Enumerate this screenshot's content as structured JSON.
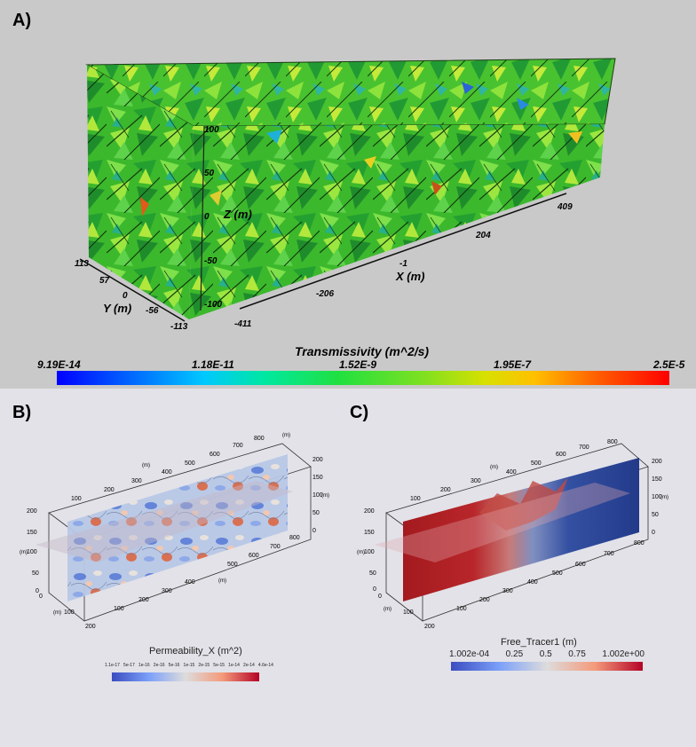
{
  "panels": {
    "a": {
      "label": "A)",
      "colorbar": {
        "title": "Transmissivity (m^2/s)",
        "ticks": [
          "9.19E-14",
          "1.18E-11",
          "1.52E-9",
          "1.95E-7",
          "2.5E-5"
        ]
      },
      "axes": {
        "z_label": "Z (m)",
        "z_ticks": [
          "100",
          "50",
          "0",
          "-50",
          "-100"
        ],
        "x_label": "X (m)",
        "x_ticks": [
          "-411",
          "-206",
          "-1",
          "204",
          "409"
        ],
        "y_label": "Y (m)",
        "y_ticks": [
          "113",
          "57",
          "0",
          "-56",
          "-113"
        ]
      }
    },
    "b": {
      "label": "B)",
      "colorbar": {
        "title": "Permeability_X (m^2)",
        "ticks": [
          "1.1e-17",
          "5e-17",
          "1e-16",
          "2e-16",
          "5e-16",
          "1e-15",
          "2e-15",
          "5e-15",
          "1e-14",
          "2e-14",
          "4.6e-14"
        ]
      },
      "axes": {
        "top_ticks": [
          "100",
          "200",
          "300",
          "400",
          "500",
          "600",
          "700",
          "800"
        ],
        "bottom_ticks": [
          "100",
          "200",
          "300",
          "400",
          "500",
          "600",
          "700",
          "800"
        ],
        "left_ticks": [
          "200",
          "150",
          "100",
          "50",
          "0"
        ],
        "right_ticks": [
          "200",
          "150",
          "100",
          "50",
          "0"
        ],
        "depth_ticks": [
          "200",
          "100",
          "0"
        ],
        "unit": "(m)"
      }
    },
    "c": {
      "label": "C)",
      "colorbar": {
        "title": "Free_Tracer1 (m)",
        "ticks": [
          "1.002e-04",
          "0.25",
          "0.5",
          "0.75",
          "1.002e+00"
        ]
      },
      "axes": {
        "top_ticks": [
          "100",
          "200",
          "300",
          "400",
          "500",
          "600",
          "700",
          "800"
        ],
        "bottom_ticks": [
          "100",
          "200",
          "300",
          "400",
          "500",
          "600",
          "700",
          "800"
        ],
        "left_ticks": [
          "200",
          "150",
          "100",
          "50",
          "0"
        ],
        "right_ticks": [
          "200",
          "150",
          "100",
          "50",
          "0"
        ],
        "depth_ticks": [
          "200",
          "100",
          "0"
        ],
        "unit": "(m)"
      }
    }
  },
  "colors": {
    "panel_a_bg": "#c9c9c9",
    "panel_bc_bg": "#e2e2e8",
    "fracture_green": "#3fbf2a",
    "jet_low": "#0000ff",
    "jet_high": "#ff0000",
    "coolwarm_low": "#3b4cc0",
    "coolwarm_high": "#b40426"
  }
}
